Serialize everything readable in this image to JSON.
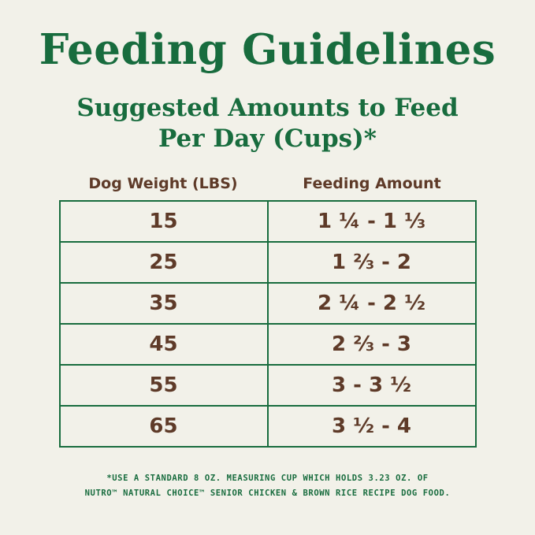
{
  "colors": {
    "brand_green": "#186c3e",
    "text_brown": "#5e3a28",
    "background_cream": "#f2f1e9"
  },
  "chart_data": {
    "type": "table",
    "title": "Feeding Guidelines",
    "subtitle_line1": "Suggested Amounts to Feed",
    "subtitle_line2": "Per Day (Cups)*",
    "columns": [
      "Dog Weight (LBS)",
      "Feeding Amount"
    ],
    "rows": [
      [
        "15",
        "1 ¼ - 1 ⅓"
      ],
      [
        "25",
        "1 ⅔ - 2"
      ],
      [
        "35",
        "2 ¼ - 2 ½"
      ],
      [
        "45",
        "2 ⅔ - 3"
      ],
      [
        "55",
        "3 - 3 ½"
      ],
      [
        "65",
        "3 ½ - 4"
      ]
    ],
    "footnote_line1": "*USE A STANDARD 8 OZ. MEASURING CUP WHICH HOLDS 3.23 OZ. OF",
    "footnote_line2": "NUTRO™ NATURAL CHOICE™ SENIOR CHICKEN & BROWN RICE RECIPE DOG FOOD."
  }
}
